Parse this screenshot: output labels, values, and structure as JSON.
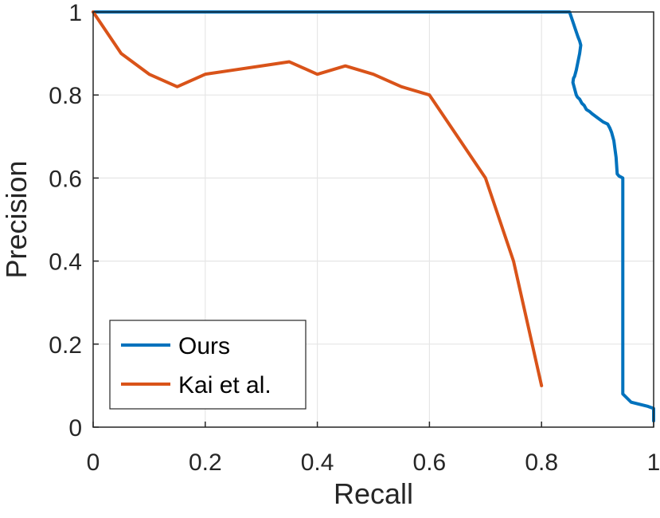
{
  "chart_data": {
    "type": "line",
    "xlabel": "Recall",
    "ylabel": "Precision",
    "xlim": [
      0,
      1
    ],
    "ylim": [
      0,
      1
    ],
    "xticks": [
      "0",
      "0.2",
      "0.4",
      "0.6",
      "0.8",
      "1"
    ],
    "yticks": [
      "0",
      "0.2",
      "0.4",
      "0.6",
      "0.8",
      "1"
    ],
    "grid": true,
    "legend_position": "bottom-left",
    "series": [
      {
        "name": "Ours",
        "color": "#0072BD",
        "x": [
          0,
          0.85,
          0.855,
          0.86,
          0.865,
          0.868,
          0.87,
          0.868,
          0.865,
          0.862,
          0.859,
          0.857,
          0.856,
          0.858,
          0.86,
          0.862,
          0.864,
          0.868,
          0.872,
          0.876,
          0.88,
          0.886,
          0.89,
          0.9,
          0.91,
          0.918,
          0.922,
          0.925,
          0.927,
          0.929,
          0.931,
          0.933,
          0.935,
          0.938,
          0.945,
          0.945,
          0.945,
          0.945,
          0.945,
          0.96,
          0.99,
          1.0,
          1.0
        ],
        "y": [
          1,
          1,
          0.98,
          0.96,
          0.94,
          0.93,
          0.92,
          0.9,
          0.88,
          0.86,
          0.845,
          0.84,
          0.83,
          0.82,
          0.81,
          0.8,
          0.795,
          0.79,
          0.78,
          0.775,
          0.765,
          0.76,
          0.755,
          0.745,
          0.735,
          0.73,
          0.72,
          0.71,
          0.7,
          0.69,
          0.67,
          0.65,
          0.61,
          0.605,
          0.6,
          0.5,
          0.3,
          0.1,
          0.08,
          0.06,
          0.05,
          0.045,
          0.015
        ]
      },
      {
        "name": "Kai et al.",
        "color": "#D95319",
        "x": [
          0,
          0.05,
          0.1,
          0.15,
          0.2,
          0.25,
          0.3,
          0.35,
          0.4,
          0.45,
          0.5,
          0.55,
          0.6,
          0.65,
          0.7,
          0.75,
          0.8
        ],
        "y": [
          1,
          0.9,
          0.85,
          0.82,
          0.85,
          0.86,
          0.87,
          0.88,
          0.85,
          0.87,
          0.85,
          0.82,
          0.8,
          0.7,
          0.6,
          0.4,
          0.1
        ]
      }
    ]
  }
}
